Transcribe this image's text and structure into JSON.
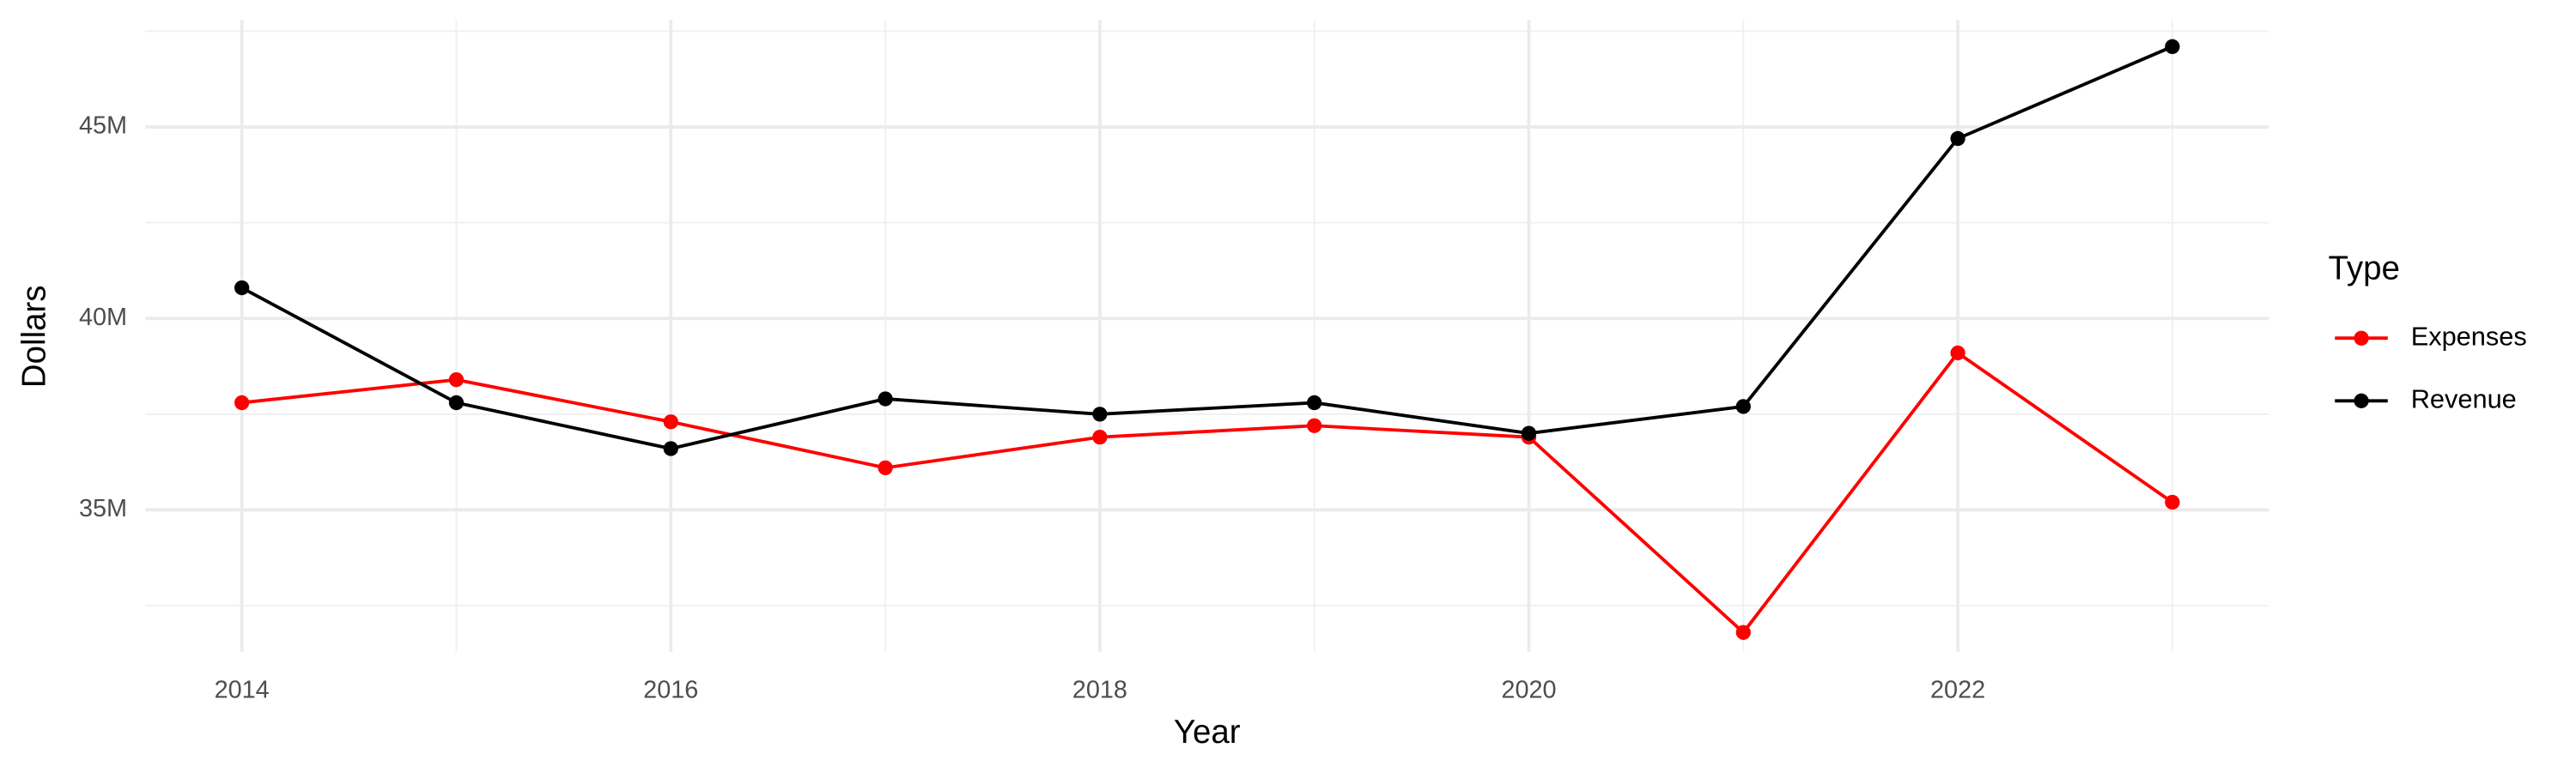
{
  "chart_data": {
    "type": "line",
    "x_label": "Year",
    "y_label": "Dollars",
    "legend_title": "Type",
    "x": [
      2014,
      2015,
      2016,
      2017,
      2018,
      2019,
      2020,
      2021,
      2022,
      2023
    ],
    "series": [
      {
        "name": "Expenses",
        "color": "#ff0000",
        "values": [
          37800000,
          38400000,
          37300000,
          36100000,
          36900000,
          37200000,
          36900000,
          31800000,
          39100000,
          35200000
        ]
      },
      {
        "name": "Revenue",
        "color": "#000000",
        "values": [
          40800000,
          37800000,
          36600000,
          37900000,
          37500000,
          37800000,
          37000000,
          37700000,
          44700000,
          47100000
        ]
      }
    ],
    "xlim": [
      2013.55,
      2023.45
    ],
    "xticks": [
      2014,
      2016,
      2018,
      2020,
      2022
    ],
    "ylim": [
      31300000,
      47800000
    ],
    "yticks": [
      {
        "value": 35000000,
        "label": "35M"
      },
      {
        "value": 40000000,
        "label": "40M"
      },
      {
        "value": 45000000,
        "label": "45M"
      }
    ],
    "grid": true,
    "legend": "right"
  }
}
